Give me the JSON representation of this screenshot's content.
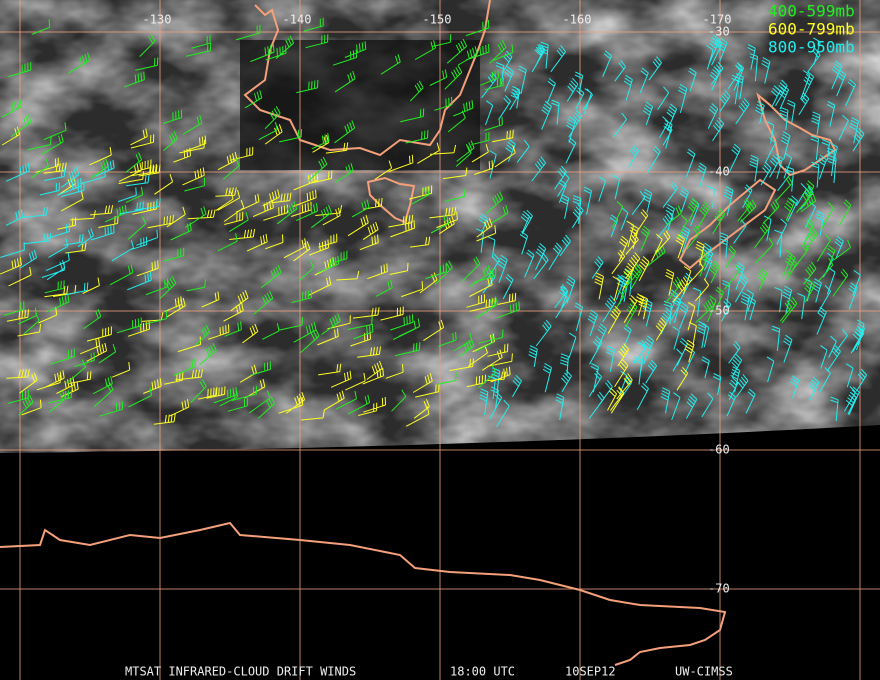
{
  "map": {
    "longitude_labels": [
      "-130",
      "-140",
      "-150",
      "-160",
      "-170"
    ],
    "latitude_labels": [
      "-30",
      "-40",
      "-50",
      "-60",
      "-70"
    ],
    "legend": [
      {
        "label": "400-599mb",
        "color": "#22ee22"
      },
      {
        "label": "600-799mb",
        "color": "#ffff22"
      },
      {
        "label": "800-950mb",
        "color": "#22eeee"
      }
    ],
    "footer": {
      "product": "MTSAT INFRARED-CLOUD DRIFT WINDS",
      "time": "18:00 UTC",
      "date": "10SEP12",
      "source": "UW-CIMSS"
    }
  }
}
